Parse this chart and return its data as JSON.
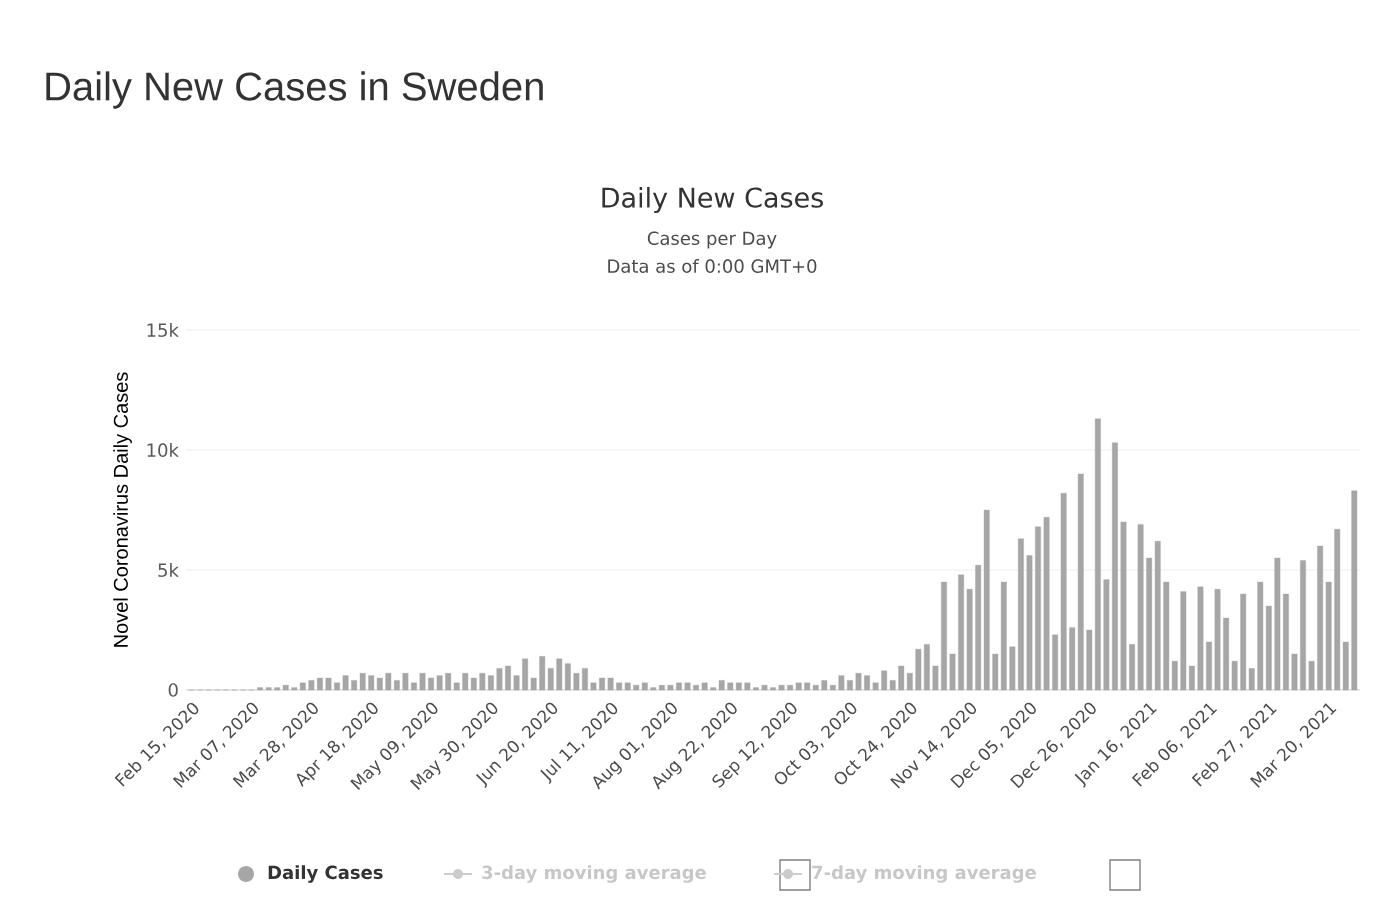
{
  "chart_data": {
    "type": "bar",
    "title": "Daily New Cases in Sweden",
    "subtitle": "Daily New Cases",
    "annotations": [
      "Cases per Day",
      "Data as of 0:00 GMT+0",
      "3-day moving average",
      "7-day moving average"
    ],
    "ylabel": "Novel Coronavirus Daily Cases",
    "x": [
      "2020-02-15",
      "2020-02-18",
      "2020-02-21",
      "2020-02-24",
      "2020-02-27",
      "2020-03-01",
      "2020-03-04",
      "2020-03-07",
      "2020-03-10",
      "2020-03-13",
      "2020-03-16",
      "2020-03-19",
      "2020-03-22",
      "2020-03-25",
      "2020-03-28",
      "2020-03-31",
      "2020-04-03",
      "2020-04-06",
      "2020-04-09",
      "2020-04-12",
      "2020-04-15",
      "2020-04-18",
      "2020-04-21",
      "2020-04-24",
      "2020-04-27",
      "2020-04-30",
      "2020-05-03",
      "2020-05-06",
      "2020-05-09",
      "2020-05-12",
      "2020-05-15",
      "2020-05-18",
      "2020-05-21",
      "2020-05-24",
      "2020-05-27",
      "2020-05-30",
      "2020-06-02",
      "2020-06-05",
      "2020-06-08",
      "2020-06-11",
      "2020-06-14",
      "2020-06-17",
      "2020-06-20",
      "2020-06-23",
      "2020-06-26",
      "2020-06-29",
      "2020-07-02",
      "2020-07-05",
      "2020-07-08",
      "2020-07-11",
      "2020-07-14",
      "2020-07-17",
      "2020-07-20",
      "2020-07-23",
      "2020-07-26",
      "2020-07-29",
      "2020-08-01",
      "2020-08-04",
      "2020-08-07",
      "2020-08-10",
      "2020-08-13",
      "2020-08-16",
      "2020-08-19",
      "2020-08-22",
      "2020-08-25",
      "2020-08-28",
      "2020-08-31",
      "2020-09-03",
      "2020-09-06",
      "2020-09-09",
      "2020-09-12",
      "2020-09-15",
      "2020-09-18",
      "2020-09-21",
      "2020-09-24",
      "2020-09-27",
      "2020-09-30",
      "2020-10-03",
      "2020-10-06",
      "2020-10-09",
      "2020-10-12",
      "2020-10-15",
      "2020-10-18",
      "2020-10-21",
      "2020-10-24",
      "2020-10-27",
      "2020-10-30",
      "2020-11-02",
      "2020-11-05",
      "2020-11-08",
      "2020-11-11",
      "2020-11-14",
      "2020-11-17",
      "2020-11-20",
      "2020-11-23",
      "2020-11-26",
      "2020-11-29",
      "2020-12-02",
      "2020-12-05",
      "2020-12-08",
      "2020-12-11",
      "2020-12-14",
      "2020-12-17",
      "2020-12-20",
      "2020-12-23",
      "2020-12-26",
      "2020-12-29",
      "2021-01-01",
      "2021-01-04",
      "2021-01-07",
      "2021-01-10",
      "2021-01-13",
      "2021-01-16",
      "2021-01-19",
      "2021-01-22",
      "2021-01-25",
      "2021-01-28",
      "2021-01-31",
      "2021-02-03",
      "2021-02-06",
      "2021-02-09",
      "2021-02-12",
      "2021-02-15",
      "2021-02-18",
      "2021-02-21",
      "2021-02-24",
      "2021-02-27",
      "2021-03-02",
      "2021-03-05",
      "2021-03-08",
      "2021-03-11",
      "2021-03-14",
      "2021-03-17",
      "2021-03-20",
      "2021-03-23",
      "2021-03-26",
      "2021-03-29"
    ],
    "series": [
      {
        "name": "Daily Cases",
        "color": "#a6a6a6",
        "values": [
          0,
          0,
          0,
          0,
          0,
          0,
          0,
          0,
          100,
          100,
          100,
          200,
          100,
          300,
          400,
          500,
          500,
          300,
          600,
          400,
          700,
          600,
          500,
          700,
          400,
          700,
          300,
          700,
          500,
          600,
          700,
          300,
          700,
          500,
          700,
          600,
          900,
          1000,
          600,
          1300,
          500,
          1400,
          900,
          1300,
          1100,
          700,
          900,
          300,
          500,
          500,
          300,
          300,
          200,
          300,
          100,
          200,
          200,
          300,
          300,
          200,
          300,
          100,
          400,
          300,
          300,
          300,
          100,
          200,
          100,
          200,
          200,
          300,
          300,
          200,
          400,
          200,
          600,
          400,
          700,
          600,
          300,
          800,
          400,
          1000,
          700,
          1700,
          1900,
          1000,
          4500,
          1500,
          4800,
          4200,
          5200,
          7500,
          1500,
          4500,
          1800,
          6300,
          5600,
          6800,
          7200,
          2300,
          8200,
          2600,
          9000,
          2500,
          11300,
          4600,
          10300,
          7000,
          1900,
          6900,
          5500,
          6200,
          4500,
          1200,
          4100,
          1000,
          4300,
          2000,
          4200,
          3000,
          1200,
          4000,
          900,
          4500,
          3500,
          5500,
          4000,
          1500,
          5400,
          1200,
          6000,
          4500,
          6700,
          2000,
          8300
        ]
      }
    ],
    "xlim": [
      "2020-02-13",
      "2021-03-31"
    ],
    "xticks": [
      {
        "value": "2020-02-15",
        "label": "Feb 15, 2020"
      },
      {
        "value": "2020-03-07",
        "label": "Mar 07, 2020"
      },
      {
        "value": "2020-03-28",
        "label": "Mar 28, 2020"
      },
      {
        "value": "2020-04-18",
        "label": "Apr 18, 2020"
      },
      {
        "value": "2020-05-09",
        "label": "May 09, 2020"
      },
      {
        "value": "2020-05-30",
        "label": "May 30, 2020"
      },
      {
        "value": "2020-06-20",
        "label": "Jun 20, 2020"
      },
      {
        "value": "2020-07-11",
        "label": "Jul 11, 2020"
      },
      {
        "value": "2020-08-01",
        "label": "Aug 01, 2020"
      },
      {
        "value": "2020-08-22",
        "label": "Aug 22, 2020"
      },
      {
        "value": "2020-09-12",
        "label": "Sep 12, 2020"
      },
      {
        "value": "2020-10-03",
        "label": "Oct 03, 2020"
      },
      {
        "value": "2020-10-24",
        "label": "Oct 24, 2020"
      },
      {
        "value": "2020-11-14",
        "label": "Nov 14, 2020"
      },
      {
        "value": "2020-12-05",
        "label": "Dec 05, 2020"
      },
      {
        "value": "2020-12-26",
        "label": "Dec 26, 2020"
      },
      {
        "value": "2021-01-16",
        "label": "Jan 16, 2021"
      },
      {
        "value": "2021-02-06",
        "label": "Feb 06, 2021"
      },
      {
        "value": "2021-02-27",
        "label": "Feb 27, 2021"
      },
      {
        "value": "2021-03-20",
        "label": "Mar 20, 2021"
      }
    ],
    "ylim": [
      0,
      15000
    ],
    "yticks": [
      {
        "value": 0,
        "label": "0"
      },
      {
        "value": 5000,
        "label": "5k"
      },
      {
        "value": 10000,
        "label": "10k"
      },
      {
        "value": 15000,
        "label": "15k"
      }
    ],
    "grid": "y",
    "legend": "bottom"
  }
}
